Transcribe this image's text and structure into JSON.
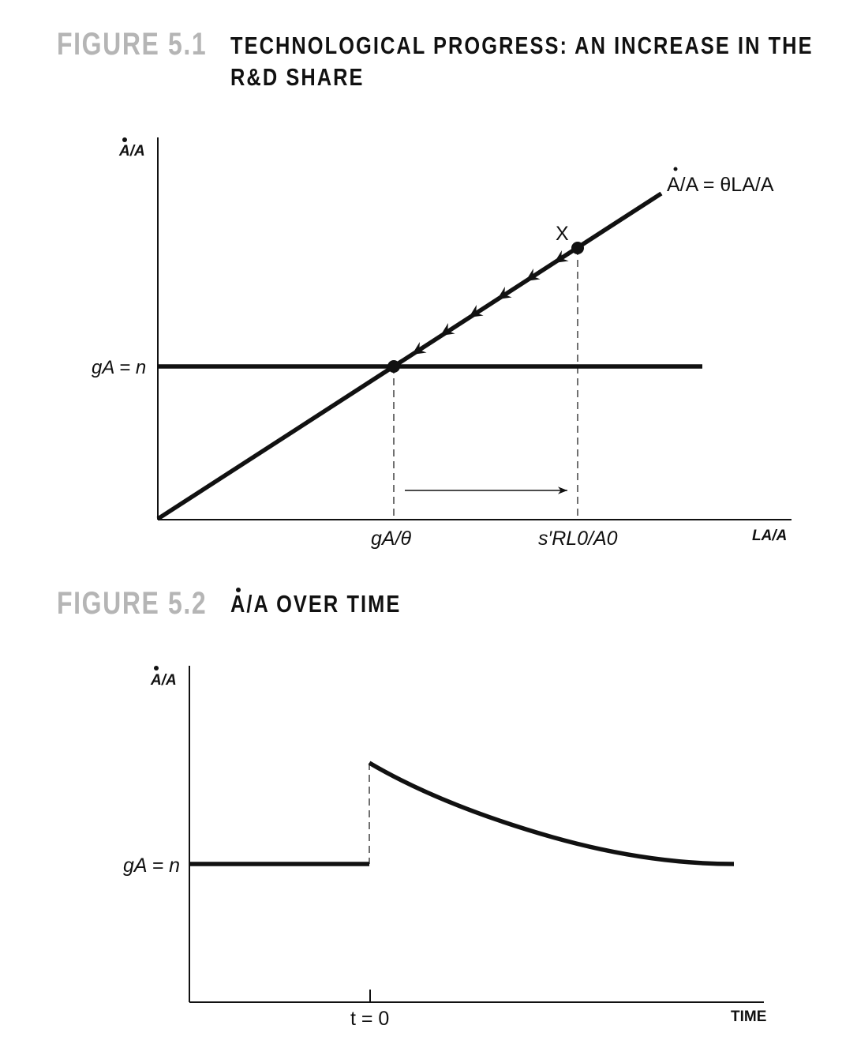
{
  "figure1": {
    "label": "FIGURE 5.1",
    "title_line1": "TECHNOLOGICAL PROGRESS: AN INCREASE IN THE",
    "title_line2": "R&D SHARE",
    "y_axis_label": "A/A",
    "x_axis_label": "LA/A",
    "line_label": "A/A = θLA/A",
    "point_label": "X",
    "horizontal_line_label": "gA = n",
    "tick_label_1": "gA/θ",
    "tick_label_2": "s′RL0/A0"
  },
  "figure2": {
    "label": "FIGURE 5.2",
    "title": "A/A OVER TIME",
    "y_axis_label": "A/A",
    "x_axis_label": "TIME",
    "level_label": "gA = n",
    "tick_label": "t = 0"
  },
  "colors": {
    "ink": "#111111",
    "figure_label": "#b5b5b5"
  }
}
